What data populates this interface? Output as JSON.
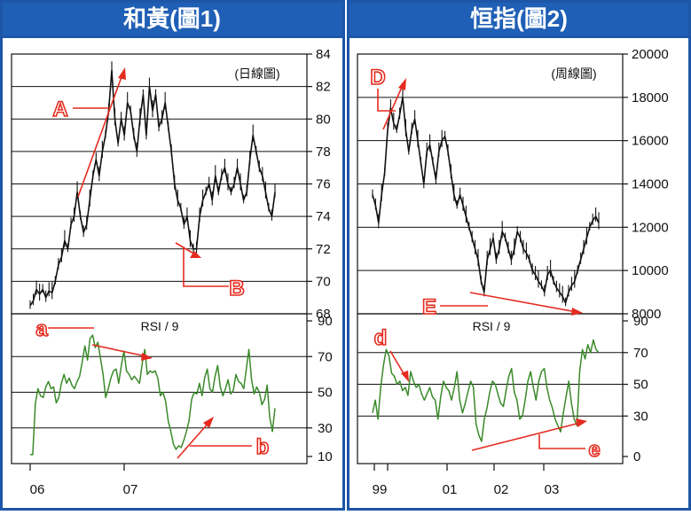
{
  "colors": {
    "frame_blue": "#1d56a8",
    "header_blue": "#1f5fb5",
    "title_text": "#ffffff",
    "panel_bg": "#ffffff",
    "price_line": "#111111",
    "rsi_line": "#3a8a2a",
    "arrow_red": "#e52b1f",
    "grid": "#111111"
  },
  "panels": [
    {
      "title": "和黃(圖1)",
      "period_label": "(日線圖)",
      "rsi_label": "RSI / 9",
      "x_tick_labels": [
        "06",
        "07"
      ],
      "price_ticks": [
        "84",
        "82",
        "80",
        "78",
        "76",
        "74",
        "72",
        "70",
        "68"
      ],
      "rsi_ticks": [
        "90",
        "70",
        "50",
        "30",
        "10"
      ],
      "annotations": [
        {
          "letter": "A",
          "kind": "upper"
        },
        {
          "letter": "B",
          "kind": "upper"
        },
        {
          "letter": "a",
          "kind": "lower"
        },
        {
          "letter": "b",
          "kind": "lower"
        }
      ]
    },
    {
      "title": "恒指(圖2)",
      "period_label": "(周線圖)",
      "rsi_label": "RSI / 9",
      "x_tick_labels": [
        "99",
        "01",
        "02",
        "03"
      ],
      "price_ticks": [
        "20000",
        "18000",
        "16000",
        "14000",
        "12000",
        "10000",
        "8000"
      ],
      "rsi_ticks": [
        "90",
        "70",
        "50",
        "30",
        "0"
      ],
      "annotations": [
        {
          "letter": "D",
          "kind": "upper"
        },
        {
          "letter": "E",
          "kind": "upper"
        },
        {
          "letter": "d",
          "kind": "lower"
        },
        {
          "letter": "e",
          "kind": "lower"
        }
      ]
    }
  ],
  "chart_data": [
    {
      "type": "line",
      "title": "和黃(圖1)",
      "subtitle": "(日線圖)",
      "x_ticks": [
        "06",
        "07"
      ],
      "price": {
        "ylim": [
          68,
          84
        ],
        "y_ticks": [
          68,
          70,
          72,
          74,
          76,
          78,
          80,
          82,
          84
        ],
        "series": [
          {
            "values": [
              68.5,
              68.8,
              69.5,
              69.2,
              69.5,
              69.0,
              69.4,
              69.3,
              70.0,
              71.0,
              71.5,
              72.5,
              72.0,
              73.5,
              74.0,
              75.5,
              74.0,
              73.0,
              73.5,
              75.0,
              76.5,
              77.5,
              76.5,
              78.0,
              79.0,
              80.5,
              83.0,
              80.0,
              78.5,
              80.0,
              79.0,
              81.0,
              80.5,
              79.0,
              78.0,
              80.0,
              81.5,
              79.0,
              82.0,
              80.5,
              81.5,
              79.5,
              80.0,
              81.0,
              79.5,
              78.0,
              76.0,
              75.0,
              74.5,
              73.5,
              74.0,
              72.5,
              72.0,
              72.0,
              74.0,
              75.0,
              75.5,
              76.0,
              75.0,
              76.5,
              75.5,
              76.5,
              77.0,
              76.0,
              75.5,
              76.0,
              77.0,
              76.0,
              75.0,
              75.5,
              77.5,
              79.0,
              78.0,
              77.0,
              76.5,
              75.5,
              74.5,
              74.0,
              75.5
            ]
          }
        ]
      },
      "rsi": {
        "label": "RSI / 9",
        "ylim": [
          10,
          90
        ],
        "y_ticks": [
          10,
          30,
          50,
          70,
          90
        ],
        "series": [
          {
            "values": [
              15,
              15,
              44,
              52,
              48,
              47,
              53,
              56,
              52,
              53,
              44,
              47,
              55,
              60,
              55,
              58,
              54,
              52,
              56,
              59,
              67,
              76,
              68,
              80,
              82,
              75,
              78,
              69,
              60,
              47,
              52,
              58,
              62,
              63,
              55,
              65,
              73,
              62,
              60,
              57,
              59,
              57,
              55,
              66,
              74,
              60,
              62,
              61,
              62,
              58,
              48,
              50,
              45,
              34,
              28,
              21,
              18,
              20,
              19,
              23,
              28,
              34,
              46,
              50,
              49,
              55,
              48,
              58,
              63,
              52,
              50,
              59,
              65,
              53,
              48,
              52,
              57,
              49,
              51,
              60,
              56,
              55,
              52,
              63,
              74,
              57,
              49,
              53,
              50,
              43,
              46,
              54,
              36,
              28,
              41
            ]
          }
        ]
      },
      "annotations": [
        "A",
        "B",
        "a",
        "b"
      ]
    },
    {
      "type": "line",
      "title": "恒指(圖2)",
      "subtitle": "(周線圖)",
      "x_ticks": [
        "99",
        "01",
        "02",
        "03"
      ],
      "price": {
        "ylim": [
          8000,
          20000
        ],
        "y_ticks": [
          8000,
          10000,
          12000,
          14000,
          16000,
          18000,
          20000
        ],
        "series": [
          {
            "values": [
              13500,
              13000,
              12200,
              13500,
              14500,
              16500,
              17500,
              16800,
              16500,
              17200,
              18000,
              16500,
              15500,
              16500,
              17000,
              16000,
              15000,
              14000,
              15500,
              15800,
              15000,
              14200,
              15500,
              16000,
              16200,
              15500,
              14500,
              13500,
              13000,
              13500,
              13000,
              12500,
              12000,
              11500,
              11000,
              10500,
              9500,
              9000,
              10500,
              11000,
              11500,
              10500,
              11000,
              11800,
              11500,
              11000,
              10500,
              11000,
              11800,
              11500,
              11000,
              10800,
              10500,
              10000,
              9800,
              9500,
              9300,
              9000,
              9800,
              10000,
              9500,
              9200,
              9000,
              8800,
              8500,
              9000,
              9300,
              9500,
              10000,
              10500,
              11000,
              11500,
              12000,
              12300,
              12500,
              12200
            ]
          }
        ]
      },
      "rsi": {
        "label": "RSI / 9",
        "ylim": [
          0,
          90
        ],
        "y_ticks": [
          0,
          30,
          50,
          70,
          90
        ],
        "series": [
          {
            "values": [
              32,
              40,
              28,
              48,
              62,
              72,
              68,
              57,
              55,
              50,
              52,
              46,
              48,
              43,
              58,
              52,
              48,
              50,
              44,
              40,
              44,
              48,
              42,
              40,
              28,
              42,
              52,
              48,
              46,
              40,
              48,
              58,
              40,
              32,
              38,
              45,
              52,
              48,
              25,
              18,
              14,
              28,
              35,
              45,
              52,
              50,
              44,
              38,
              36,
              46,
              55,
              60,
              45,
              40,
              28,
              30,
              40,
              52,
              58,
              48,
              40,
              52,
              58,
              60,
              48,
              40,
              35,
              28,
              24,
              20,
              32,
              42,
              52,
              38,
              28,
              24,
              58,
              72,
              66,
              75,
              70,
              78,
              72,
              70
            ]
          }
        ]
      },
      "annotations": [
        "D",
        "E",
        "d",
        "e"
      ]
    }
  ]
}
